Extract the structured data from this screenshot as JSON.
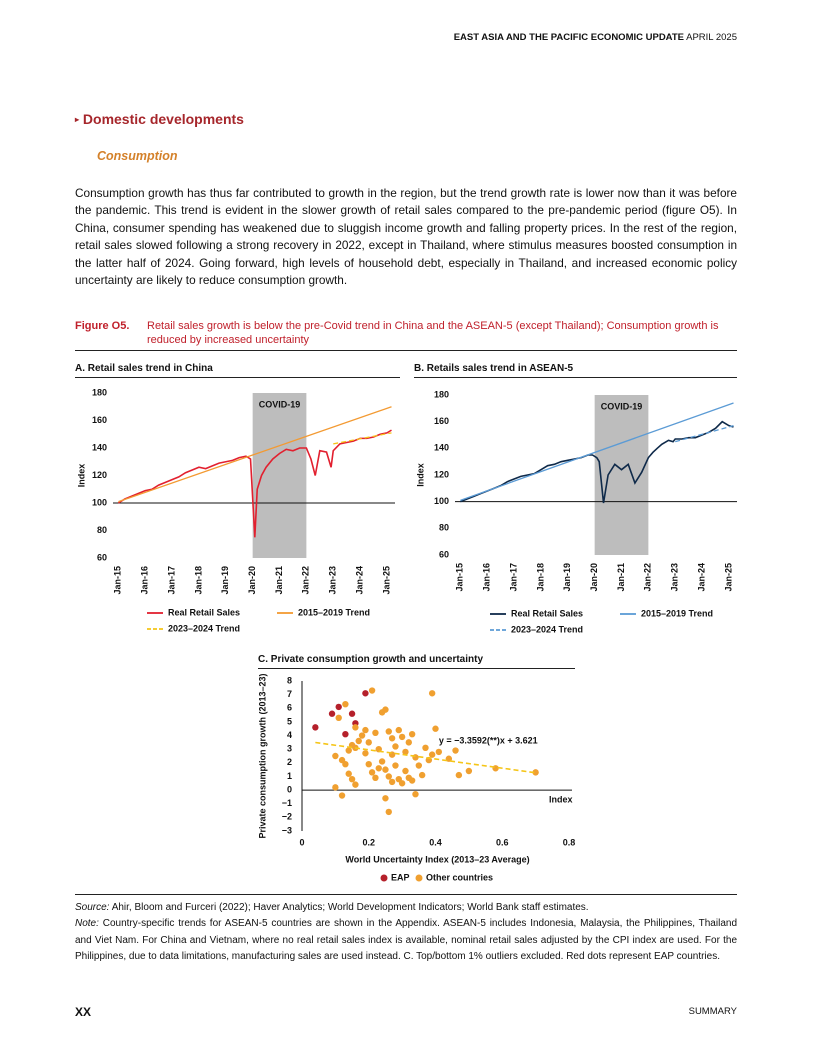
{
  "header": {
    "title": "EAST ASIA AND THE PACIFIC ECONOMIC UPDATE",
    "edition": "APRIL 2025"
  },
  "section": {
    "title": "Domestic developments",
    "subtitle": "Consumption"
  },
  "paragraph": "Consumption growth has thus far contributed to growth in the region, but the trend growth rate is lower now than it was before the pandemic. This trend is evident in the slower growth of retail sales compared to the pre-pandemic period (figure O5). In China, consumer spending has weakened due to sluggish income growth and falling property prices. In the rest of the region, retail sales slowed following a strong recovery in 2022, except in Thailand, where stimulus measures boosted consumption in the latter half of 2024. Going forward, high levels of household debt, especially in Thailand, and increased economic policy uncertainty are likely to reduce consumption growth.",
  "figure": {
    "label": "Figure O5.",
    "caption": "Retail sales growth is below the pre-Covid trend in China and the ASEAN-5 (except Thailand); Consumption growth is reduced by increased uncertainty"
  },
  "chart_data": [
    {
      "type": "line",
      "title": "A. Retail sales trend in China",
      "y_label": "Index",
      "xlim": [
        2014.8,
        2025.3
      ],
      "ylim": [
        60,
        180
      ],
      "yticks": [
        60,
        80,
        100,
        120,
        140,
        160,
        180
      ],
      "xticks": [
        {
          "value": 2015,
          "label": "Jan-15"
        },
        {
          "value": 2016,
          "label": "Jan-16"
        },
        {
          "value": 2017,
          "label": "Jan-17"
        },
        {
          "value": 2018,
          "label": "Jan-18"
        },
        {
          "value": 2019,
          "label": "Jan-19"
        },
        {
          "value": 2020,
          "label": "Jan-20"
        },
        {
          "value": 2021,
          "label": "Jan-21"
        },
        {
          "value": 2022,
          "label": "Jan-22"
        },
        {
          "value": 2023,
          "label": "Jan-23"
        },
        {
          "value": 2024,
          "label": "Jan-24"
        },
        {
          "value": 2025,
          "label": "Jan-25"
        }
      ],
      "shade": {
        "x": [
          2020,
          2022
        ],
        "label": "COVID-19"
      },
      "reference_line": 100,
      "series": [
        {
          "name": "Real Retail Sales",
          "color": "#e2202f",
          "x": [
            2015,
            2015.25,
            2015.5,
            2015.75,
            2016,
            2016.25,
            2016.5,
            2016.75,
            2017,
            2017.25,
            2017.5,
            2017.75,
            2018,
            2018.25,
            2018.5,
            2018.75,
            2019,
            2019.25,
            2019.5,
            2019.75,
            2019.92,
            2020.08,
            2020.17,
            2020.33,
            2020.5,
            2020.75,
            2021,
            2021.25,
            2021.5,
            2021.75,
            2022,
            2022.17,
            2022.33,
            2022.5,
            2022.75,
            2022.92,
            2023,
            2023.25,
            2023.5,
            2023.75,
            2024,
            2024.25,
            2024.5,
            2024.75,
            2025,
            2025.17
          ],
          "values": [
            100,
            103,
            105,
            107,
            109,
            110,
            113,
            115,
            117,
            119,
            122,
            124,
            126,
            125,
            127,
            129,
            130,
            131,
            133,
            134,
            132,
            75,
            110,
            120,
            126,
            132,
            136,
            139,
            138,
            140,
            140,
            132,
            120,
            138,
            137,
            126,
            138,
            143,
            144,
            145,
            147,
            147,
            148,
            150,
            151,
            153
          ]
        },
        {
          "name": "2015–2019 Trend",
          "color": "#f39a32",
          "x": [
            2015,
            2025.17
          ],
          "values": [
            101,
            170
          ]
        },
        {
          "name": "2023–2024 Trend",
          "color": "#f5c518",
          "dashed": true,
          "x": [
            2023,
            2025.17
          ],
          "values": [
            143,
            151
          ]
        }
      ]
    },
    {
      "type": "line",
      "title": "B. Retails sales trend in ASEAN-5",
      "y_label": "Index",
      "xlim": [
        2014.8,
        2025.3
      ],
      "ylim": [
        60,
        180
      ],
      "yticks": [
        60,
        80,
        100,
        120,
        140,
        160,
        180
      ],
      "xticks": [
        {
          "value": 2015,
          "label": "Jan-15"
        },
        {
          "value": 2016,
          "label": "Jan-16"
        },
        {
          "value": 2017,
          "label": "Jan-17"
        },
        {
          "value": 2018,
          "label": "Jan-18"
        },
        {
          "value": 2019,
          "label": "Jan-19"
        },
        {
          "value": 2020,
          "label": "Jan-20"
        },
        {
          "value": 2021,
          "label": "Jan-21"
        },
        {
          "value": 2022,
          "label": "Jan-22"
        },
        {
          "value": 2023,
          "label": "Jan-23"
        },
        {
          "value": 2024,
          "label": "Jan-24"
        },
        {
          "value": 2025,
          "label": "Jan-25"
        }
      ],
      "shade": {
        "x": [
          2020,
          2022
        ],
        "label": "COVID-19"
      },
      "reference_line": 100,
      "series": [
        {
          "name": "Real Retail Sales",
          "color": "#0f2a4a",
          "x": [
            2015,
            2015.25,
            2015.5,
            2015.75,
            2016,
            2016.25,
            2016.5,
            2016.75,
            2017,
            2017.25,
            2017.5,
            2017.75,
            2018,
            2018.25,
            2018.5,
            2018.75,
            2019,
            2019.25,
            2019.5,
            2019.75,
            2019.92,
            2020.08,
            2020.17,
            2020.33,
            2020.5,
            2020.75,
            2021,
            2021.25,
            2021.5,
            2021.75,
            2022,
            2022.17,
            2022.33,
            2022.5,
            2022.75,
            2022.92,
            2023,
            2023.25,
            2023.5,
            2023.75,
            2024,
            2024.25,
            2024.5,
            2024.75,
            2025,
            2025.17
          ],
          "values": [
            100,
            102,
            104,
            106,
            108,
            110,
            112,
            115,
            117,
            119,
            120,
            121,
            124,
            127,
            128,
            130,
            131,
            132,
            133,
            135,
            135,
            133,
            130,
            99,
            120,
            128,
            124,
            128,
            114,
            122,
            133,
            137,
            140,
            143,
            146,
            145,
            147,
            147,
            148,
            148,
            150,
            152,
            155,
            160,
            157,
            156
          ]
        },
        {
          "name": "2015–2019 Trend",
          "color": "#5b9bd5",
          "x": [
            2015,
            2025.17
          ],
          "values": [
            101,
            174
          ]
        },
        {
          "name": "2023–2024 Trend",
          "color": "#5b9bd5",
          "dashed": true,
          "x": [
            2023,
            2025.17
          ],
          "values": [
            145,
            157
          ]
        }
      ]
    },
    {
      "type": "scatter",
      "title": "C. Private consumption growth and uncertainty",
      "x_label": "World Uncertainty Index (2013–23 Average)",
      "y_label": "Private consumption growth (2013–23)",
      "xlim": [
        0,
        0.8
      ],
      "ylim": [
        -3,
        8
      ],
      "xticks": [
        0,
        0.2,
        0.4,
        0.6,
        0.8
      ],
      "yticks": [
        {
          "value": -3,
          "label": "−3"
        },
        {
          "value": -2,
          "label": "−2"
        },
        {
          "value": -1,
          "label": "−1"
        },
        0,
        1,
        2,
        3,
        4,
        5,
        6,
        7,
        8
      ],
      "annotation": "y = −3.3592(**)x + 3.621",
      "x_axis_note": "Index",
      "trendline": {
        "color": "#f5c518",
        "x": [
          0.04,
          0.7
        ],
        "y": [
          3.49,
          1.27
        ]
      },
      "series": [
        {
          "name": "EAP",
          "color": "#b5202b",
          "x": [
            0.04,
            0.09,
            0.11,
            0.13,
            0.15,
            0.16,
            0.19
          ],
          "values": [
            4.6,
            5.6,
            6.1,
            4.1,
            5.6,
            4.9,
            7.1
          ]
        },
        {
          "name": "Other countries",
          "color": "#f0a030",
          "x": [
            0.21,
            0.39,
            0.11,
            0.13,
            0.16,
            0.18,
            0.2,
            0.22,
            0.24,
            0.25,
            0.26,
            0.27,
            0.28,
            0.29,
            0.3,
            0.31,
            0.32,
            0.33,
            0.34,
            0.35,
            0.36,
            0.37,
            0.38,
            0.39,
            0.41,
            0.44,
            0.46,
            0.47,
            0.5,
            0.58,
            0.7,
            0.1,
            0.12,
            0.13,
            0.14,
            0.15,
            0.16,
            0.12,
            0.1,
            0.16,
            0.17,
            0.19,
            0.2,
            0.21,
            0.22,
            0.23,
            0.24,
            0.25,
            0.26,
            0.27,
            0.28,
            0.29,
            0.3,
            0.31,
            0.32,
            0.33,
            0.25,
            0.26,
            0.34,
            0.4,
            0.19,
            0.15,
            0.14,
            0.23,
            0.27
          ],
          "values": [
            7.3,
            7.1,
            5.3,
            6.3,
            4.6,
            4.0,
            3.5,
            4.2,
            5.7,
            5.9,
            4.3,
            3.8,
            3.2,
            4.4,
            3.9,
            2.8,
            3.5,
            4.1,
            2.4,
            1.8,
            1.1,
            3.1,
            2.2,
            2.6,
            2.8,
            2.3,
            2.9,
            1.1,
            1.4,
            1.6,
            1.3,
            2.5,
            2.2,
            1.9,
            1.2,
            0.8,
            0.4,
            -0.4,
            0.2,
            3.1,
            3.6,
            2.7,
            1.9,
            1.3,
            0.9,
            1.6,
            2.1,
            1.5,
            1.0,
            0.6,
            1.8,
            0.8,
            0.5,
            1.4,
            0.9,
            0.7,
            -0.6,
            -1.6,
            -0.3,
            4.5,
            4.4,
            3.3,
            2.9,
            3.0,
            2.6
          ]
        }
      ]
    }
  ],
  "source": {
    "label": "Source:",
    "text": "Ahir, Bloom and Furceri (2022); Haver Analytics; World Development Indicators; World Bank staff estimates."
  },
  "note": {
    "label": "Note:",
    "text": "Country-specific trends for ASEAN-5 countries are shown in the Appendix. ASEAN-5 includes Indonesia, Malaysia, the Philippines, Thailand and Viet Nam. For China and Vietnam, where no real retail sales index is available, nominal retail sales adjusted by the CPI index are used. For the Philippines, due to data limitations, manufacturing sales are used instead. C. Top/bottom 1% outliers excluded. Red dots represent EAP countries."
  },
  "footer": {
    "page": "XX",
    "section": "SUMMARY"
  }
}
